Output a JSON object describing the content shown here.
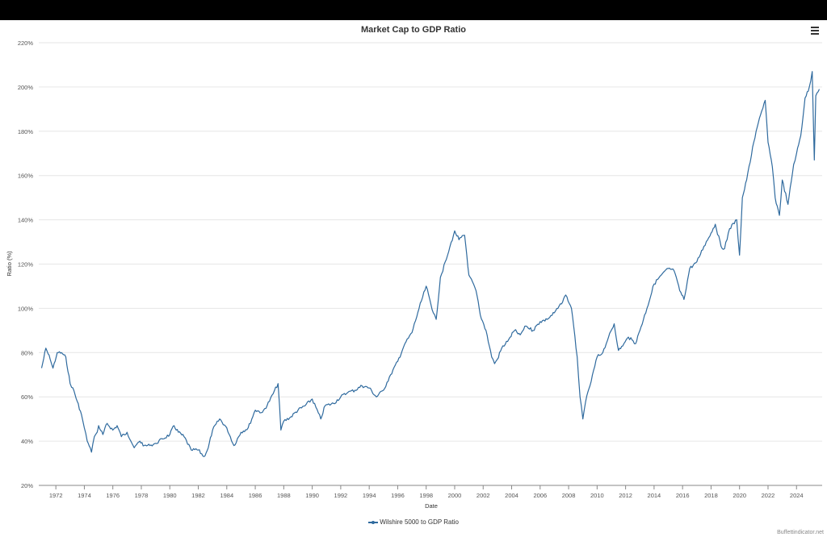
{
  "chart_data": {
    "type": "line",
    "title": "Market Cap to GDP Ratio",
    "xlabel": "Date",
    "ylabel": "Ratio (%)",
    "xlim": [
      1970.8,
      2025.8
    ],
    "ylim": [
      20,
      220
    ],
    "y_ticks": [
      "20%",
      "40%",
      "60%",
      "80%",
      "100%",
      "120%",
      "140%",
      "160%",
      "180%",
      "200%",
      "220%"
    ],
    "x_ticks": [
      "1972",
      "1974",
      "1976",
      "1978",
      "1980",
      "1982",
      "1984",
      "1986",
      "1988",
      "1990",
      "1992",
      "1994",
      "1996",
      "1998",
      "2000",
      "2002",
      "2004",
      "2006",
      "2008",
      "2010",
      "2012",
      "2014",
      "2016",
      "2018",
      "2020",
      "2022",
      "2024"
    ],
    "grid": true,
    "legend": "bottom-center",
    "series": [
      {
        "name": "Wilshire 5000 to GDP Ratio",
        "color": "#2f6a9e",
        "x": [
          1971.0,
          1971.3,
          1971.6,
          1971.8,
          1972.1,
          1972.4,
          1972.7,
          1973.0,
          1973.2,
          1973.5,
          1973.8,
          1974.0,
          1974.2,
          1974.5,
          1974.7,
          1974.9,
          1975.0,
          1975.3,
          1975.6,
          1976.0,
          1976.3,
          1976.6,
          1977.0,
          1977.5,
          1977.9,
          1978.2,
          1978.6,
          1979.0,
          1979.5,
          1980.0,
          1980.3,
          1980.6,
          1981.0,
          1981.5,
          1982.0,
          1982.4,
          1982.7,
          1983.0,
          1983.5,
          1984.0,
          1984.5,
          1985.0,
          1985.5,
          1986.0,
          1986.5,
          1987.0,
          1987.6,
          1987.8,
          1988.0,
          1988.5,
          1989.0,
          1989.5,
          1990.0,
          1990.6,
          1990.9,
          1991.5,
          1992.0,
          1992.5,
          1993.0,
          1993.5,
          1994.0,
          1994.5,
          1995.0,
          1995.5,
          1996.0,
          1996.5,
          1997.0,
          1997.5,
          1998.0,
          1998.5,
          1998.7,
          1999.0,
          1999.5,
          2000.0,
          2000.3,
          2000.7,
          2001.0,
          2001.5,
          2001.8,
          2002.2,
          2002.6,
          2002.8,
          2003.0,
          2003.3,
          2003.8,
          2004.2,
          2004.6,
          2005.0,
          2005.5,
          2006.0,
          2006.5,
          2007.0,
          2007.5,
          2007.8,
          2008.2,
          2008.6,
          2008.8,
          2009.0,
          2009.2,
          2009.5,
          2010.0,
          2010.4,
          2010.8,
          2011.2,
          2011.5,
          2011.8,
          2012.2,
          2012.7,
          2013.0,
          2013.5,
          2014.0,
          2014.5,
          2015.0,
          2015.4,
          2015.8,
          2016.1,
          2016.5,
          2017.0,
          2017.5,
          2018.0,
          2018.3,
          2018.7,
          2018.95,
          2019.3,
          2019.8,
          2020.0,
          2020.2,
          2020.5,
          2021.0,
          2021.4,
          2021.8,
          2022.0,
          2022.3,
          2022.5,
          2022.8,
          2023.0,
          2023.4,
          2023.8,
          2024.0,
          2024.3,
          2024.6,
          2024.9,
          2025.1,
          2025.25,
          2025.35,
          2025.6
        ],
        "y": [
          73,
          82,
          77,
          73,
          80,
          80,
          78,
          66,
          64,
          58,
          52,
          46,
          40,
          35,
          42,
          44,
          47,
          43,
          48,
          45,
          47,
          42,
          44,
          37,
          40,
          38,
          38,
          39,
          41,
          43,
          47,
          44,
          42,
          36,
          36,
          33,
          37,
          45,
          50,
          46,
          38,
          44,
          46,
          54,
          53,
          58,
          66,
          45,
          49,
          51,
          54,
          56,
          59,
          50,
          56,
          57,
          60,
          62,
          63,
          65,
          64,
          60,
          63,
          70,
          76,
          84,
          89,
          100,
          110,
          98,
          95,
          114,
          124,
          135,
          131,
          133,
          115,
          108,
          97,
          90,
          78,
          75,
          77,
          82,
          86,
          90,
          88,
          92,
          90,
          94,
          95,
          98,
          102,
          106,
          100,
          78,
          60,
          50,
          58,
          65,
          78,
          80,
          87,
          93,
          81,
          83,
          87,
          84,
          90,
          100,
          111,
          115,
          118,
          117,
          108,
          104,
          118,
          121,
          128,
          134,
          138,
          128,
          127,
          136,
          140,
          124,
          150,
          158,
          175,
          186,
          194,
          175,
          164,
          150,
          142,
          158,
          147,
          165,
          170,
          178,
          195,
          200,
          207,
          167,
          196,
          199
        ]
      }
    ]
  },
  "credit": "Buffettindicator.net"
}
